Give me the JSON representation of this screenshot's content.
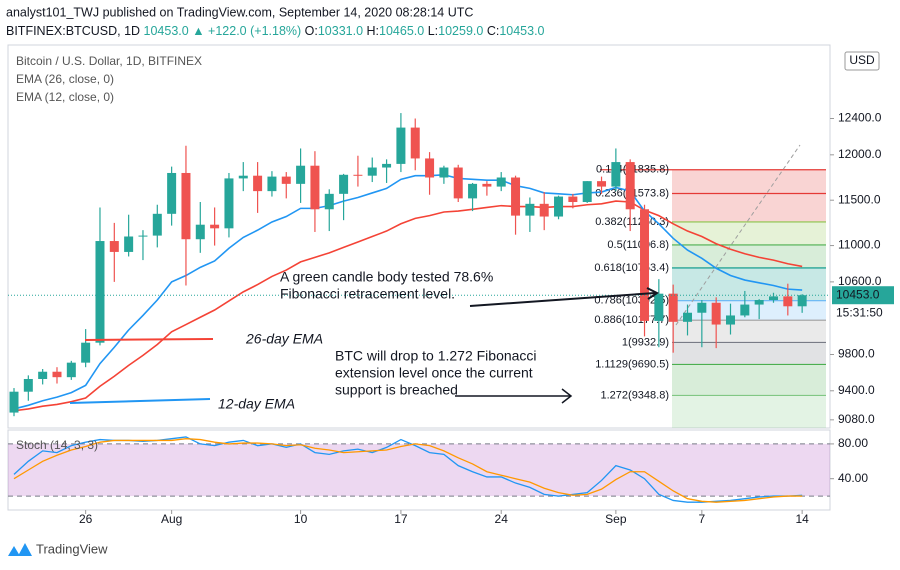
{
  "header": {
    "publisher": "analyst101_TWJ published on TradingView.com, September 14, 2020 08:28:14 UTC",
    "quote": [
      {
        "text": "BITFINEX:BTCUSD, 1D ",
        "color": "#131722"
      },
      {
        "text": "10453.0 ",
        "color": "#26a69a"
      },
      {
        "text": "▲ +122.0 (+1.18%) ",
        "color": "#26a69a"
      },
      {
        "text": "O:",
        "color": "#131722"
      },
      {
        "text": "10331.0 ",
        "color": "#26a69a"
      },
      {
        "text": "H:",
        "color": "#131722"
      },
      {
        "text": "10465.0 ",
        "color": "#26a69a"
      },
      {
        "text": "L:",
        "color": "#131722"
      },
      {
        "text": "10259.0 ",
        "color": "#26a69a"
      },
      {
        "text": "C:",
        "color": "#131722"
      },
      {
        "text": "10453.0",
        "color": "#26a69a"
      }
    ],
    "logo": "TradingView"
  },
  "chart_data": {
    "type": "candlestick",
    "title": "Bitcoin / U.S. Dollar, 1D, BITFINEX",
    "currency": "USD",
    "categories": [
      null,
      null,
      null,
      null,
      null,
      "26",
      null,
      null,
      null,
      null,
      null,
      "Aug",
      null,
      null,
      null,
      null,
      null,
      null,
      null,
      null,
      "10",
      null,
      null,
      null,
      null,
      null,
      null,
      "17",
      null,
      null,
      null,
      null,
      null,
      null,
      "24",
      null,
      null,
      null,
      null,
      null,
      null,
      null,
      "Sep",
      null,
      null,
      null,
      null,
      null,
      "7",
      null,
      null,
      null,
      null,
      null,
      null,
      "14"
    ],
    "open": [
      9160,
      9390,
      9530,
      9610,
      9550,
      9710,
      9930,
      11050,
      10930,
      11100,
      11110,
      11350,
      11800,
      11070,
      11230,
      11190,
      11740,
      11770,
      11600,
      11760,
      11680,
      11880,
      11400,
      11570,
      11780,
      11770,
      11860,
      11900,
      12300,
      11960,
      11750,
      11860,
      11520,
      11680,
      11650,
      11750,
      11330,
      11460,
      11320,
      11540,
      11480,
      11710,
      11650,
      11920,
      11400,
      10170,
      10470,
      10160,
      10260,
      10370,
      10130,
      10230,
      10350,
      10400,
      10440,
      10331
    ],
    "high": [
      9430,
      9570,
      9640,
      9660,
      9730,
      10080,
      11420,
      11250,
      11340,
      11170,
      11450,
      11870,
      12100,
      11480,
      11420,
      11800,
      11920,
      11920,
      11820,
      11810,
      12070,
      12040,
      11620,
      11790,
      11990,
      11970,
      11950,
      12460,
      12400,
      12030,
      11880,
      11890,
      11690,
      11710,
      11810,
      11770,
      11530,
      11590,
      11550,
      11570,
      11710,
      11760,
      12070,
      11950,
      11450,
      10630,
      10570,
      10350,
      10400,
      10430,
      10360,
      10500,
      10410,
      10480,
      10580,
      10465
    ],
    "low": [
      9120,
      9290,
      9470,
      9480,
      9520,
      9660,
      9900,
      10600,
      10880,
      10840,
      10980,
      11220,
      10560,
      10920,
      11000,
      11090,
      11600,
      11360,
      11540,
      11520,
      11470,
      11150,
      11160,
      11280,
      11650,
      11700,
      11690,
      11810,
      11830,
      11560,
      11680,
      11480,
      11380,
      11550,
      11600,
      11120,
      11150,
      11170,
      11290,
      11410,
      11470,
      11570,
      11600,
      11160,
      10000,
      9880,
      9820,
      10010,
      9880,
      9870,
      10020,
      10210,
      10190,
      10370,
      10230,
      10259
    ],
    "close": [
      9390,
      9530,
      9610,
      9550,
      9710,
      9930,
      11050,
      10930,
      11100,
      11110,
      11350,
      11800,
      11070,
      11230,
      11190,
      11740,
      11770,
      11600,
      11760,
      11680,
      11880,
      11400,
      11570,
      11780,
      11770,
      11860,
      11900,
      12300,
      11960,
      11750,
      11860,
      11520,
      11680,
      11650,
      11750,
      11330,
      11460,
      11320,
      11540,
      11480,
      11710,
      11650,
      11920,
      11400,
      10170,
      10470,
      10160,
      10260,
      10370,
      10130,
      10230,
      10350,
      10400,
      10440,
      10331,
      10453
    ],
    "up_color": "#26a69a",
    "down_color": "#ef5350",
    "ema": [
      {
        "name": "EMA (26, close, 0)",
        "color": "#f44336",
        "values": [
          9180,
          9200,
          9230,
          9250,
          9280,
          9320,
          9450,
          9560,
          9680,
          9790,
          9910,
          10050,
          10130,
          10210,
          10290,
          10390,
          10490,
          10570,
          10660,
          10730,
          10820,
          10870,
          10920,
          10980,
          11040,
          11100,
          11160,
          11240,
          11300,
          11330,
          11370,
          11380,
          11400,
          11420,
          11440,
          11430,
          11430,
          11420,
          11430,
          11430,
          11450,
          11460,
          11490,
          11480,
          11390,
          11330,
          11240,
          11160,
          11100,
          11020,
          10960,
          10910,
          10870,
          10840,
          10800,
          10770
        ]
      },
      {
        "name": "EMA (12, close, 0)",
        "color": "#2196f3",
        "values": [
          9200,
          9240,
          9290,
          9330,
          9380,
          9460,
          9700,
          9880,
          10070,
          10230,
          10400,
          10600,
          10670,
          10760,
          10830,
          10970,
          11090,
          11170,
          11260,
          11320,
          11410,
          11410,
          11440,
          11490,
          11530,
          11580,
          11630,
          11730,
          11770,
          11770,
          11780,
          11740,
          11730,
          11720,
          11720,
          11660,
          11630,
          11580,
          11570,
          11560,
          11580,
          11590,
          11640,
          11600,
          11380,
          11240,
          11080,
          10950,
          10860,
          10750,
          10670,
          10620,
          10590,
          10560,
          10520,
          10510
        ]
      }
    ],
    "ylim": [
      8990,
      13210
    ],
    "yticks": [
      {
        "value": 12400,
        "label": "12400.0"
      },
      {
        "value": 12000,
        "label": "12000.0"
      },
      {
        "value": 11500,
        "label": "11500.0"
      },
      {
        "value": 11000,
        "label": "11000.0"
      },
      {
        "value": 10600,
        "label": "10600.0"
      },
      {
        "value": 9800,
        "label": "9800.0"
      },
      {
        "value": 9400,
        "label": "9400.0"
      },
      {
        "value": 9080,
        "label": "9080.0"
      }
    ],
    "last_price_label": "10453.0",
    "countdown": "15:31:50",
    "fib": [
      {
        "value": 11835.8,
        "label": "0.114(11835.8)",
        "color": "#e53935"
      },
      {
        "value": 11573.8,
        "label": "0.236(11573.8)",
        "color": "#e53935"
      },
      {
        "value": 11260.3,
        "label": "0.382(11260.3)",
        "color": "#8bc34a"
      },
      {
        "value": 11006.8,
        "label": "0.5(11006.8)",
        "color": "#4caf50"
      },
      {
        "value": 10753.4,
        "label": "0.618(10753.4)",
        "color": "#009688"
      },
      {
        "value": 10392.5,
        "label": "0.786(10392.5)",
        "color": "#64b5f6"
      },
      {
        "value": 10177.7,
        "label": "0.886(10177.7)",
        "color": "#9e9e9e"
      },
      {
        "value": 9932.9,
        "label": "1(9932.9)",
        "color": "#787b86"
      },
      {
        "value": 9690.5,
        "label": "1.1129(9690.5)",
        "color": "#4caf50"
      },
      {
        "value": 9348.8,
        "label": "1.272(9348.8)",
        "color": "#81c784"
      }
    ],
    "annotations": [
      {
        "lines": [
          "A green candle body tested 78.6%",
          "Fibonacci retracement level."
        ]
      },
      {
        "lines": [
          "BTC will drop to 1.272 Fibonacci",
          "extension level once the current",
          "support is breached"
        ]
      },
      {
        "lines": [
          "26-day EMA"
        ],
        "color": "#f44336"
      },
      {
        "lines": [
          "12-day EMA"
        ],
        "color": "#2196f3"
      }
    ],
    "stoch": {
      "name": "Stoch (14, 3, 3)",
      "ylim": [
        4,
        96
      ],
      "yticks": [
        {
          "value": 80,
          "label": "80.00"
        },
        {
          "value": 40,
          "label": "40.00"
        }
      ],
      "bands": [
        20,
        80
      ],
      "series": [
        {
          "name": "%K",
          "color": "#2196f3",
          "values": [
            45,
            60,
            72,
            70,
            78,
            82,
            85,
            84,
            84,
            83,
            84,
            86,
            88,
            80,
            78,
            82,
            84,
            78,
            80,
            76,
            80,
            70,
            68,
            72,
            74,
            70,
            76,
            85,
            78,
            70,
            68,
            55,
            48,
            42,
            42,
            35,
            30,
            22,
            20,
            22,
            24,
            38,
            55,
            50,
            40,
            22,
            15,
            13,
            13,
            14,
            15,
            17,
            19,
            20,
            20,
            21
          ]
        },
        {
          "name": "%D",
          "color": "#ff9800",
          "values": [
            40,
            50,
            60,
            67,
            73,
            77,
            82,
            84,
            84,
            84,
            84,
            84,
            86,
            85,
            82,
            80,
            81,
            81,
            80,
            78,
            79,
            75,
            73,
            70,
            71,
            72,
            73,
            77,
            80,
            78,
            72,
            64,
            57,
            48,
            44,
            40,
            36,
            29,
            24,
            21,
            22,
            28,
            39,
            48,
            48,
            37,
            26,
            17,
            14,
            13,
            14,
            15,
            17,
            19,
            20,
            20
          ]
        }
      ]
    }
  }
}
